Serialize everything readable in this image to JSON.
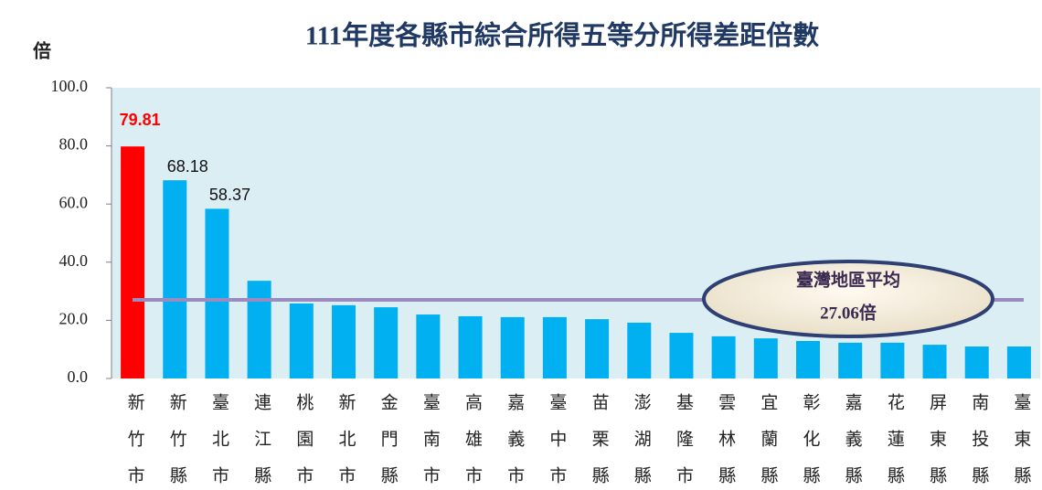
{
  "chart_data": {
    "type": "bar",
    "title": "111年度各縣市綜合所得五等分所得差距倍數",
    "y_label": "倍",
    "categories": [
      "新竹市",
      "新竹縣",
      "臺北市",
      "連江縣",
      "桃園市",
      "新北市",
      "金門縣",
      "臺南市",
      "高雄市",
      "嘉義市",
      "臺中市",
      "苗栗縣",
      "澎湖縣",
      "基隆市",
      "雲林縣",
      "宜蘭縣",
      "彰化縣",
      "嘉義縣",
      "花蓮縣",
      "屏東縣",
      "南投縣",
      "臺東縣"
    ],
    "values": [
      79.81,
      68.18,
      58.37,
      33.6,
      25.8,
      25.2,
      24.5,
      22.0,
      21.4,
      21.1,
      21.1,
      20.4,
      19.2,
      15.7,
      14.5,
      13.8,
      12.9,
      12.3,
      12.3,
      11.6,
      11.0,
      11.0
    ],
    "value_labels": [
      "79.81",
      "68.18",
      "58.37",
      null,
      null,
      null,
      null,
      null,
      null,
      null,
      null,
      null,
      null,
      null,
      null,
      null,
      null,
      null,
      null,
      null,
      null,
      null
    ],
    "colors": [
      "#ff0000",
      "#00b0f0",
      "#00b0f0",
      "#00b0f0",
      "#00b0f0",
      "#00b0f0",
      "#00b0f0",
      "#00b0f0",
      "#00b0f0",
      "#00b0f0",
      "#00b0f0",
      "#00b0f0",
      "#00b0f0",
      "#00b0f0",
      "#00b0f0",
      "#00b0f0",
      "#00b0f0",
      "#00b0f0",
      "#00b0f0",
      "#00b0f0",
      "#00b0f0",
      "#00b0f0"
    ],
    "ylim": [
      0,
      100
    ],
    "yticks": [
      {
        "value": 0,
        "label": "0.0"
      },
      {
        "value": 20,
        "label": "20.0"
      },
      {
        "value": 40,
        "label": "40.0"
      },
      {
        "value": 60,
        "label": "60.0"
      },
      {
        "value": 80,
        "label": "80.0"
      },
      {
        "value": 100,
        "label": "100.0"
      }
    ],
    "reference_line": {
      "value": 27.06,
      "label": "臺灣地區平均",
      "value_label": "27.06倍",
      "color": "#9a8cc0"
    }
  }
}
